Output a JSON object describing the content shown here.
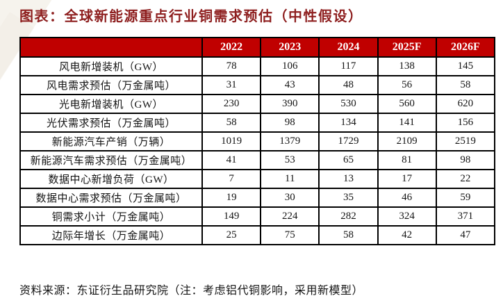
{
  "title": "图表：全球新能源重点行业铜需求预估（中性假设）",
  "source_note": "资料来源：东证衍生品研究院（注：考虑铝代铜影响，采用新模型）",
  "colors": {
    "header_bg": "#c00000",
    "header_text": "#ffffff",
    "title_text": "#8e1f1f",
    "border": "#000000",
    "body_text": "#141414",
    "watermark": "#efe9df"
  },
  "chart_data": {
    "type": "table",
    "title": "全球新能源重点行业铜需求预估（中性假设）",
    "columns": [
      "",
      "2022",
      "2023",
      "2024",
      "2025F",
      "2026F"
    ],
    "rows": [
      {
        "label": "风电新增装机（GW）",
        "values": [
          78,
          106,
          117,
          138,
          145
        ]
      },
      {
        "label": "风电需求预估（万金属吨）",
        "values": [
          31,
          43,
          48,
          56,
          58
        ]
      },
      {
        "label": "光电新增装机（GW）",
        "values": [
          230,
          390,
          530,
          560,
          620
        ]
      },
      {
        "label": "光伏需求预估（万金属吨）",
        "values": [
          58,
          98,
          134,
          141,
          156
        ]
      },
      {
        "label": "新能源汽车产销（万辆）",
        "values": [
          1019,
          1379,
          1729,
          2109,
          2519
        ]
      },
      {
        "label": "新能源汽车需求预估（万金属吨）",
        "values": [
          41,
          53,
          65,
          81,
          98
        ]
      },
      {
        "label": "数据中心新增负荷（GW）",
        "values": [
          7,
          11,
          13,
          17,
          22
        ]
      },
      {
        "label": "数据中心需求预估（万金属吨）",
        "values": [
          19,
          30,
          35,
          46,
          59
        ]
      },
      {
        "label": "铜需求小计（万金属吨）",
        "values": [
          149,
          224,
          282,
          324,
          371
        ]
      },
      {
        "label": "边际年增长（万金属吨）",
        "values": [
          25,
          75,
          58,
          42,
          47
        ]
      }
    ]
  }
}
